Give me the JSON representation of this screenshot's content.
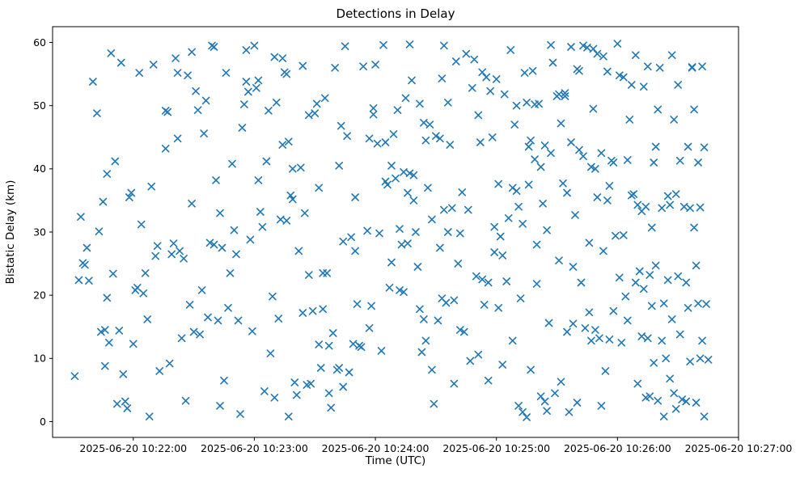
{
  "chart_data": {
    "type": "scatter",
    "title": "Detections in Delay",
    "xlabel": "Time (UTC)",
    "ylabel": "Bistatic Delay (km)",
    "marker": "x",
    "marker_color": "#1f77b4",
    "background_color": "#ffffff",
    "grid": false,
    "legend": "none",
    "x_axis": {
      "unit": "seconds after 2025-06-20 10:21:00 UTC",
      "lim": [
        20,
        360
      ],
      "ticks": [
        {
          "t": 60,
          "label": "2025-06-20 10:22:00"
        },
        {
          "t": 120,
          "label": "2025-06-20 10:23:00"
        },
        {
          "t": 180,
          "label": "2025-06-20 10:24:00"
        },
        {
          "t": 240,
          "label": "2025-06-20 10:25:00"
        },
        {
          "t": 300,
          "label": "2025-06-20 10:26:00"
        },
        {
          "t": 360,
          "label": "2025-06-20 10:27:00"
        }
      ]
    },
    "y_axis": {
      "lim": [
        -2.5,
        62.5
      ],
      "ticks": [
        0,
        10,
        20,
        30,
        40,
        50,
        60
      ]
    },
    "points": [
      [
        31,
        7.2
      ],
      [
        33,
        22.4
      ],
      [
        34,
        32.4
      ],
      [
        35,
        25.1
      ],
      [
        36,
        24.8
      ],
      [
        37,
        27.5
      ],
      [
        38,
        22.3
      ],
      [
        40,
        53.8
      ],
      [
        42,
        48.8
      ],
      [
        43,
        30.1
      ],
      [
        44,
        14.2
      ],
      [
        45,
        34.8
      ],
      [
        46,
        8.8
      ],
      [
        46,
        14.5
      ],
      [
        47,
        19.6
      ],
      [
        47,
        39.2
      ],
      [
        48,
        12.5
      ],
      [
        49,
        58.3
      ],
      [
        50,
        23.4
      ],
      [
        51,
        41.2
      ],
      [
        52,
        2.8
      ],
      [
        53,
        14.4
      ],
      [
        54,
        56.8
      ],
      [
        55,
        7.5
      ],
      [
        56,
        3.2
      ],
      [
        57,
        2.1
      ],
      [
        58,
        35.5
      ],
      [
        59,
        36.2
      ],
      [
        60,
        12.3
      ],
      [
        61,
        20.8
      ],
      [
        62,
        21.2
      ],
      [
        63,
        55.2
      ],
      [
        64,
        31.2
      ],
      [
        65,
        20.3
      ],
      [
        66,
        23.5
      ],
      [
        67,
        16.2
      ],
      [
        68,
        0.8
      ],
      [
        69,
        37.2
      ],
      [
        70,
        56.5
      ],
      [
        71,
        26.2
      ],
      [
        72,
        27.8
      ],
      [
        73,
        8.0
      ],
      [
        76,
        49.2
      ],
      [
        76,
        43.2
      ],
      [
        77,
        49.0
      ],
      [
        78,
        9.2
      ],
      [
        79,
        26.5
      ],
      [
        80,
        28.2
      ],
      [
        81,
        57.5
      ],
      [
        82,
        55.2
      ],
      [
        82,
        44.8
      ],
      [
        83,
        27.0
      ],
      [
        84,
        13.2
      ],
      [
        85,
        25.8
      ],
      [
        86,
        3.3
      ],
      [
        87,
        54.8
      ],
      [
        88,
        18.5
      ],
      [
        89,
        58.5
      ],
      [
        89,
        34.5
      ],
      [
        90,
        14.2
      ],
      [
        91,
        52.3
      ],
      [
        92,
        49.3
      ],
      [
        93,
        13.8
      ],
      [
        94,
        20.8
      ],
      [
        95,
        45.6
      ],
      [
        96,
        50.8
      ],
      [
        97,
        16.5
      ],
      [
        98,
        28.3
      ],
      [
        99,
        59.5
      ],
      [
        100,
        59.3
      ],
      [
        100,
        28.0
      ],
      [
        101,
        38.2
      ],
      [
        102,
        16.0
      ],
      [
        103,
        33.0
      ],
      [
        103,
        2.5
      ],
      [
        104,
        27.5
      ],
      [
        105,
        6.5
      ],
      [
        106,
        55.2
      ],
      [
        107,
        18.0
      ],
      [
        108,
        23.5
      ],
      [
        109,
        40.8
      ],
      [
        110,
        30.3
      ],
      [
        111,
        26.5
      ],
      [
        112,
        16.0
      ],
      [
        113,
        1.2
      ],
      [
        114,
        46.5
      ],
      [
        115,
        50.2
      ],
      [
        116,
        58.8
      ],
      [
        116,
        53.8
      ],
      [
        117,
        52.2
      ],
      [
        118,
        28.8
      ],
      [
        119,
        14.3
      ],
      [
        120,
        59.5
      ],
      [
        121,
        52.8
      ],
      [
        122,
        54.0
      ],
      [
        122,
        38.2
      ],
      [
        123,
        33.2
      ],
      [
        124,
        30.8
      ],
      [
        125,
        4.8
      ],
      [
        126,
        41.2
      ],
      [
        127,
        49.2
      ],
      [
        128,
        10.8
      ],
      [
        129,
        19.8
      ],
      [
        130,
        57.7
      ],
      [
        130,
        3.8
      ],
      [
        131,
        50.5
      ],
      [
        132,
        16.3
      ],
      [
        133,
        32.0
      ],
      [
        134,
        57.5
      ],
      [
        134,
        43.8
      ],
      [
        135,
        55.3
      ],
      [
        136,
        55.0
      ],
      [
        136,
        31.8
      ],
      [
        137,
        44.3
      ],
      [
        137,
        0.8
      ],
      [
        138,
        35.8
      ],
      [
        139,
        40.0
      ],
      [
        139,
        35.2
      ],
      [
        140,
        6.2
      ],
      [
        141,
        4.2
      ],
      [
        142,
        27.0
      ],
      [
        143,
        40.2
      ],
      [
        144,
        56.3
      ],
      [
        144,
        17.2
      ],
      [
        145,
        33.0
      ],
      [
        146,
        5.8
      ],
      [
        147,
        23.2
      ],
      [
        147,
        48.5
      ],
      [
        148,
        6.0
      ],
      [
        149,
        17.5
      ],
      [
        150,
        48.8
      ],
      [
        151,
        50.3
      ],
      [
        152,
        37.0
      ],
      [
        152,
        12.2
      ],
      [
        153,
        8.5
      ],
      [
        154,
        23.5
      ],
      [
        154,
        17.8
      ],
      [
        155,
        51.2
      ],
      [
        156,
        23.5
      ],
      [
        157,
        4.5
      ],
      [
        157,
        12.0
      ],
      [
        158,
        2.2
      ],
      [
        159,
        14.0
      ],
      [
        160,
        56.0
      ],
      [
        161,
        8.2
      ],
      [
        162,
        40.5
      ],
      [
        162,
        8.5
      ],
      [
        163,
        46.8
      ],
      [
        164,
        5.5
      ],
      [
        164,
        28.5
      ],
      [
        165,
        59.4
      ],
      [
        166,
        45.2
      ],
      [
        167,
        7.8
      ],
      [
        168,
        29.2
      ],
      [
        169,
        12.3
      ],
      [
        170,
        35.5
      ],
      [
        170,
        27.0
      ],
      [
        171,
        18.6
      ],
      [
        172,
        12.0
      ],
      [
        173,
        11.8
      ],
      [
        174,
        56.2
      ],
      [
        176,
        30.2
      ],
      [
        177,
        44.8
      ],
      [
        177,
        14.8
      ],
      [
        178,
        18.3
      ],
      [
        179,
        48.6
      ],
      [
        179,
        49.6
      ],
      [
        180,
        56.5
      ],
      [
        181,
        44.0
      ],
      [
        182,
        29.8
      ],
      [
        183,
        11.2
      ],
      [
        184,
        59.6
      ],
      [
        185,
        44.2
      ],
      [
        185,
        38.0
      ],
      [
        186,
        37.5
      ],
      [
        187,
        21.2
      ],
      [
        188,
        25.2
      ],
      [
        188,
        40.5
      ],
      [
        189,
        45.5
      ],
      [
        190,
        38.5
      ],
      [
        191,
        49.3
      ],
      [
        192,
        20.8
      ],
      [
        192,
        30.5
      ],
      [
        193,
        28.0
      ],
      [
        194,
        39.5
      ],
      [
        194,
        20.5
      ],
      [
        195,
        51.2
      ],
      [
        196,
        36.2
      ],
      [
        196,
        28.2
      ],
      [
        197,
        59.7
      ],
      [
        197,
        39.3
      ],
      [
        198,
        54.0
      ],
      [
        199,
        39.0
      ],
      [
        199,
        35.0
      ],
      [
        200,
        30.0
      ],
      [
        201,
        24.5
      ],
      [
        202,
        17.8
      ],
      [
        202,
        50.3
      ],
      [
        203,
        11.0
      ],
      [
        204,
        47.3
      ],
      [
        204,
        16.2
      ],
      [
        205,
        12.8
      ],
      [
        205,
        44.5
      ],
      [
        206,
        37.0
      ],
      [
        207,
        47.0
      ],
      [
        208,
        8.2
      ],
      [
        208,
        32.0
      ],
      [
        209,
        2.8
      ],
      [
        210,
        45.2
      ],
      [
        211,
        16.0
      ],
      [
        212,
        44.8
      ],
      [
        212,
        27.5
      ],
      [
        213,
        54.3
      ],
      [
        213,
        19.5
      ],
      [
        214,
        59.5
      ],
      [
        214,
        33.5
      ],
      [
        215,
        18.8
      ],
      [
        216,
        50.5
      ],
      [
        216,
        30.0
      ],
      [
        217,
        43.8
      ],
      [
        218,
        33.8
      ],
      [
        219,
        19.2
      ],
      [
        219,
        6.0
      ],
      [
        220,
        57.0
      ],
      [
        221,
        25.0
      ],
      [
        222,
        29.8
      ],
      [
        222,
        14.5
      ],
      [
        223,
        36.3
      ],
      [
        224,
        14.2
      ],
      [
        225,
        58.2
      ],
      [
        226,
        33.5
      ],
      [
        227,
        9.6
      ],
      [
        228,
        52.8
      ],
      [
        229,
        57.3
      ],
      [
        230,
        23.0
      ],
      [
        231,
        48.5
      ],
      [
        231,
        10.6
      ],
      [
        232,
        44.2
      ],
      [
        233,
        55.3
      ],
      [
        233,
        22.5
      ],
      [
        234,
        18.5
      ],
      [
        235,
        54.5
      ],
      [
        236,
        22.0
      ],
      [
        236,
        6.5
      ],
      [
        237,
        52.3
      ],
      [
        238,
        45.0
      ],
      [
        239,
        30.8
      ],
      [
        239,
        26.8
      ],
      [
        240,
        54.2
      ],
      [
        241,
        37.6
      ],
      [
        241,
        18.0
      ],
      [
        242,
        29.3
      ],
      [
        243,
        26.3
      ],
      [
        243,
        9.0
      ],
      [
        244,
        51.8
      ],
      [
        245,
        22.2
      ],
      [
        246,
        32.2
      ],
      [
        247,
        58.8
      ],
      [
        248,
        37.0
      ],
      [
        248,
        12.8
      ],
      [
        249,
        47.0
      ],
      [
        250,
        50.0
      ],
      [
        250,
        36.5
      ],
      [
        251,
        34.0
      ],
      [
        251,
        2.5
      ],
      [
        252,
        19.5
      ],
      [
        253,
        31.3
      ],
      [
        253,
        1.5
      ],
      [
        254,
        55.2
      ],
      [
        255,
        0.7
      ],
      [
        255,
        50.5
      ],
      [
        256,
        43.5
      ],
      [
        256,
        37.5
      ],
      [
        257,
        8.2
      ],
      [
        257,
        44.5
      ],
      [
        258,
        55.5
      ],
      [
        259,
        50.2
      ],
      [
        259,
        41.5
      ],
      [
        260,
        28.0
      ],
      [
        260,
        21.8
      ],
      [
        261,
        50.3
      ],
      [
        262,
        40.3
      ],
      [
        262,
        4.0
      ],
      [
        263,
        34.5
      ],
      [
        264,
        3.2
      ],
      [
        264,
        43.7
      ],
      [
        265,
        30.3
      ],
      [
        265,
        1.7
      ],
      [
        266,
        15.6
      ],
      [
        267,
        59.6
      ],
      [
        267,
        42.5
      ],
      [
        268,
        56.8
      ],
      [
        269,
        4.5
      ],
      [
        270,
        51.5
      ],
      [
        271,
        51.8
      ],
      [
        271,
        25.5
      ],
      [
        272,
        47.2
      ],
      [
        272,
        6.3
      ],
      [
        273,
        37.7
      ],
      [
        274,
        52.0
      ],
      [
        274,
        51.5
      ],
      [
        275,
        36.2
      ],
      [
        275,
        14.2
      ],
      [
        276,
        1.5
      ],
      [
        277,
        59.3
      ],
      [
        277,
        44.2
      ],
      [
        278,
        24.5
      ],
      [
        278,
        15.5
      ],
      [
        279,
        32.7
      ],
      [
        280,
        3.0
      ],
      [
        280,
        55.8
      ],
      [
        281,
        55.5
      ],
      [
        281,
        43.0
      ],
      [
        282,
        22.0
      ],
      [
        283,
        59.5
      ],
      [
        283,
        42.0
      ],
      [
        284,
        14.8
      ],
      [
        285,
        59.2
      ],
      [
        286,
        28.3
      ],
      [
        286,
        17.3
      ],
      [
        287,
        40.3
      ],
      [
        287,
        12.8
      ],
      [
        288,
        59.0
      ],
      [
        288,
        49.5
      ],
      [
        289,
        40.0
      ],
      [
        289,
        14.5
      ],
      [
        290,
        58.2
      ],
      [
        290,
        35.5
      ],
      [
        291,
        13.2
      ],
      [
        292,
        42.5
      ],
      [
        292,
        2.5
      ],
      [
        293,
        57.8
      ],
      [
        293,
        27.0
      ],
      [
        294,
        8.0
      ],
      [
        295,
        55.4
      ],
      [
        295,
        35.0
      ],
      [
        296,
        37.3
      ],
      [
        296,
        13.0
      ],
      [
        297,
        41.3
      ],
      [
        298,
        41.0
      ],
      [
        298,
        17.5
      ],
      [
        299,
        29.4
      ],
      [
        300,
        59.8
      ],
      [
        301,
        54.8
      ],
      [
        301,
        22.8
      ],
      [
        302,
        12.5
      ],
      [
        303,
        54.5
      ],
      [
        303,
        29.5
      ],
      [
        304,
        19.8
      ],
      [
        305,
        41.4
      ],
      [
        305,
        16.0
      ],
      [
        306,
        47.8
      ],
      [
        307,
        53.3
      ],
      [
        307,
        35.8
      ],
      [
        308,
        36.0
      ],
      [
        309,
        58.0
      ],
      [
        309,
        22.0
      ],
      [
        310,
        34.3
      ],
      [
        310,
        6.0
      ],
      [
        311,
        23.8
      ],
      [
        312,
        13.5
      ],
      [
        312,
        33.3
      ],
      [
        313,
        53.0
      ],
      [
        313,
        21.0
      ],
      [
        314,
        34.0
      ],
      [
        314,
        3.8
      ],
      [
        315,
        56.2
      ],
      [
        315,
        13.2
      ],
      [
        316,
        23.2
      ],
      [
        316,
        4.0
      ],
      [
        317,
        30.7
      ],
      [
        317,
        18.3
      ],
      [
        318,
        41.0
      ],
      [
        318,
        9.3
      ],
      [
        319,
        43.5
      ],
      [
        319,
        24.7
      ],
      [
        320,
        49.4
      ],
      [
        320,
        3.3
      ],
      [
        321,
        56.0
      ],
      [
        322,
        33.8
      ],
      [
        322,
        12.8
      ],
      [
        323,
        18.7
      ],
      [
        323,
        0.8
      ],
      [
        324,
        10.0
      ],
      [
        325,
        35.7
      ],
      [
        325,
        22.4
      ],
      [
        326,
        34.3
      ],
      [
        326,
        6.8
      ],
      [
        327,
        58.0
      ],
      [
        327,
        16.2
      ],
      [
        328,
        47.8
      ],
      [
        328,
        4.5
      ],
      [
        329,
        36.0
      ],
      [
        329,
        2.0
      ],
      [
        330,
        53.3
      ],
      [
        330,
        23.0
      ],
      [
        331,
        41.3
      ],
      [
        331,
        13.8
      ],
      [
        332,
        3.5
      ],
      [
        333,
        34.0
      ],
      [
        334,
        22.0
      ],
      [
        334,
        3.2
      ],
      [
        335,
        43.5
      ],
      [
        335,
        18.0
      ],
      [
        336,
        33.8
      ],
      [
        336,
        9.5
      ],
      [
        337,
        56.1
      ],
      [
        337,
        56.0
      ],
      [
        338,
        49.4
      ],
      [
        338,
        30.7
      ],
      [
        339,
        24.7
      ],
      [
        339,
        3.0
      ],
      [
        340,
        41.0
      ],
      [
        340,
        18.7
      ],
      [
        341,
        33.9
      ],
      [
        341,
        10.0
      ],
      [
        342,
        56.2
      ],
      [
        342,
        12.8
      ],
      [
        343,
        43.4
      ],
      [
        343,
        0.8
      ],
      [
        344,
        18.6
      ],
      [
        345,
        9.8
      ]
    ]
  }
}
